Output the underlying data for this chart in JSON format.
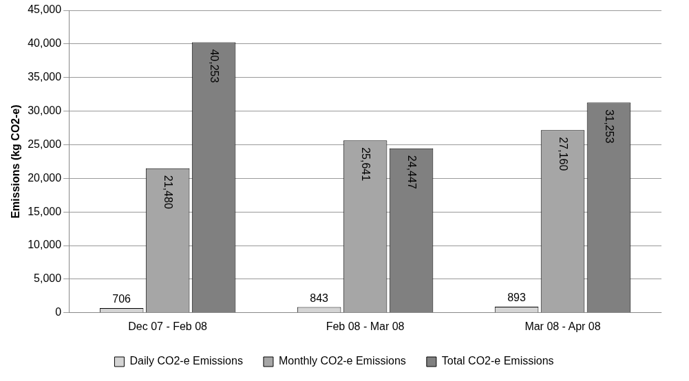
{
  "chart_data": {
    "type": "bar",
    "ylabel": "Emissions (kg CO2-e)",
    "categories": [
      "Dec 07 - Feb 08",
      "Feb 08 - Mar 08",
      "Mar 08 - Apr 08"
    ],
    "series": [
      {
        "name": "Daily CO2-e Emissions",
        "color": "#d4d4d4",
        "values": [
          706,
          843,
          893
        ],
        "value_labels": [
          "706",
          "843",
          "893"
        ]
      },
      {
        "name": "Monthly CO2-e Emissions",
        "color": "#a6a6a6",
        "values": [
          21480,
          25641,
          27160
        ],
        "value_labels": [
          "21,480",
          "25,641",
          "27,160"
        ]
      },
      {
        "name": "Total CO2-e Emissions",
        "color": "#808080",
        "values": [
          40253,
          24447,
          31253
        ],
        "value_labels": [
          "40,253",
          "24,447",
          "31,253"
        ]
      }
    ],
    "ylim": [
      0,
      45000
    ],
    "yticks": [
      {
        "value": 0,
        "label": "0"
      },
      {
        "value": 5000,
        "label": "5,000"
      },
      {
        "value": 10000,
        "label": "10,000"
      },
      {
        "value": 15000,
        "label": "15,000"
      },
      {
        "value": 20000,
        "label": "20,000"
      },
      {
        "value": 25000,
        "label": "25,000"
      },
      {
        "value": 30000,
        "label": "30,000"
      },
      {
        "value": 35000,
        "label": "35,000"
      },
      {
        "value": 40000,
        "label": "40,000"
      },
      {
        "value": 45000,
        "label": "45,000"
      }
    ],
    "grid": "y",
    "legend": "bottom"
  }
}
